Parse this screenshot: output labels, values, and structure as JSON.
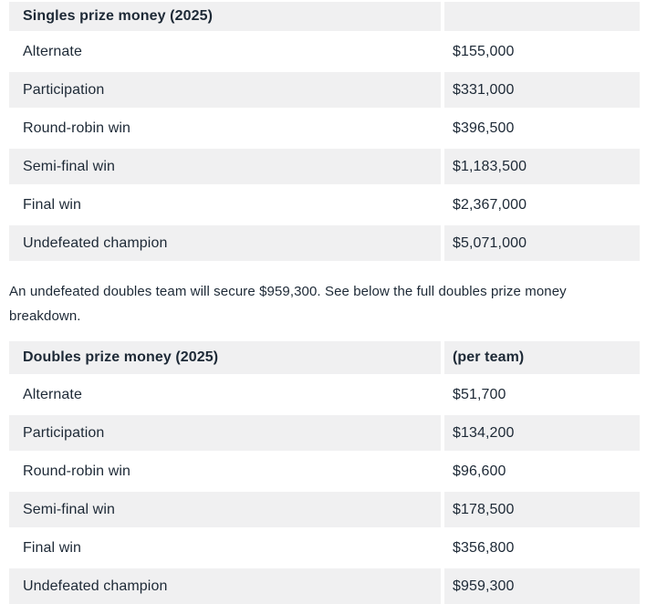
{
  "page": {
    "background_color": "#ffffff",
    "text_color": "#1d2936",
    "stripe_color": "#f0f0f1"
  },
  "singles_table": {
    "header": {
      "label": "Singles prize money (2025)",
      "value": ""
    },
    "rows": [
      {
        "label": "Alternate",
        "value": "$155,000"
      },
      {
        "label": "Participation",
        "value": "$331,000"
      },
      {
        "label": "Round-robin win",
        "value": "$396,500"
      },
      {
        "label": "Semi-final win",
        "value": "$1,183,500"
      },
      {
        "label": "Final win",
        "value": "$2,367,000"
      },
      {
        "label": "Undefeated champion",
        "value": "$5,071,000"
      }
    ]
  },
  "note": {
    "text": "An undefeated doubles team will secure $959,300. See below the full doubles prize money breakdown."
  },
  "doubles_table": {
    "header": {
      "label": "Doubles prize money (2025)",
      "value": "(per team)"
    },
    "rows": [
      {
        "label": "Alternate",
        "value": "$51,700"
      },
      {
        "label": "Participation",
        "value": "$134,200"
      },
      {
        "label": "Round-robin win",
        "value": "$96,600"
      },
      {
        "label": "Semi-final win",
        "value": "$178,500"
      },
      {
        "label": "Final win",
        "value": "$356,800"
      },
      {
        "label": "Undefeated champion",
        "value": "$959,300"
      }
    ]
  }
}
